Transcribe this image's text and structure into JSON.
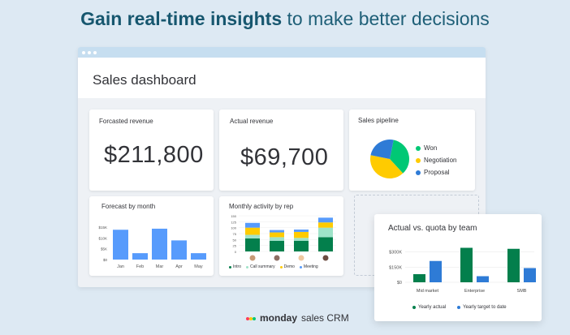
{
  "headline": {
    "bold": "Gain real-time insights",
    "rest": "to make better decisions"
  },
  "dashboard": {
    "title": "Sales dashboard"
  },
  "cards": {
    "forecasted": {
      "title": "Forcasted revenue",
      "value": "$211,800"
    },
    "actual": {
      "title": "Actual revenue",
      "value": "$69,700"
    },
    "pipeline": {
      "title": "Sales pipeline",
      "legend": [
        {
          "label": "Won",
          "color": "#00c875"
        },
        {
          "label": "Negotiation",
          "color": "#ffcb00"
        },
        {
          "label": "Proposal",
          "color": "#2e7bd6"
        }
      ]
    },
    "forecast_month": {
      "title": "Forecast by month"
    },
    "monthly_activity": {
      "title": "Monthly activity by rep",
      "legend": [
        {
          "label": "Intro",
          "color": "#037f4c"
        },
        {
          "label": "Call summary",
          "color": "#9fe3c9"
        },
        {
          "label": "Demo",
          "color": "#ffcb00"
        },
        {
          "label": "Meeting",
          "color": "#579bfc"
        }
      ]
    },
    "quota": {
      "title": "Actual vs. quota by team",
      "legend": [
        {
          "label": "Yearly actual",
          "color": "#037f4c"
        },
        {
          "label": "Yearly target to date",
          "color": "#2e7bd6"
        }
      ]
    }
  },
  "brand": {
    "name": "monday",
    "suffix": "sales CRM"
  },
  "chart_data": [
    {
      "type": "pie",
      "title": "Sales pipeline",
      "categories": [
        "Won",
        "Negotiation",
        "Proposal"
      ],
      "values": [
        35,
        40,
        25
      ],
      "colors": [
        "#00c875",
        "#ffcb00",
        "#2e7bd6"
      ]
    },
    {
      "type": "bar",
      "title": "Forecast by month",
      "categories": [
        "Jan",
        "Feb",
        "Mar",
        "Apr",
        "May"
      ],
      "values": [
        140,
        30,
        145,
        90,
        30
      ],
      "yticks": [
        "$0",
        "$5K",
        "$10K",
        "$15K"
      ],
      "color": "#579bfc"
    },
    {
      "type": "bar",
      "title": "Monthly activity by rep",
      "stacked": true,
      "categories": [
        "rep1",
        "rep2",
        "rep3",
        "rep4"
      ],
      "yticks": [
        "0",
        "25",
        "50",
        "75",
        "100",
        "125",
        "150"
      ],
      "series": [
        {
          "name": "Intro",
          "values": [
            55,
            45,
            45,
            60
          ]
        },
        {
          "name": "Call summary",
          "values": [
            15,
            15,
            12,
            40
          ]
        },
        {
          "name": "Demo",
          "values": [
            30,
            20,
            25,
            22
          ]
        },
        {
          "name": "Meeting",
          "values": [
            20,
            10,
            10,
            20
          ]
        }
      ]
    },
    {
      "type": "bar",
      "title": "Actual vs. quota by team",
      "categories": [
        "Mid market",
        "Enterprise",
        "SMB"
      ],
      "yticks": [
        "$0",
        "$150K",
        "$300K"
      ],
      "series": [
        {
          "name": "Yearly actual",
          "values": [
            80,
            340,
            330
          ]
        },
        {
          "name": "Yearly target to date",
          "values": [
            210,
            60,
            140
          ]
        }
      ]
    }
  ]
}
